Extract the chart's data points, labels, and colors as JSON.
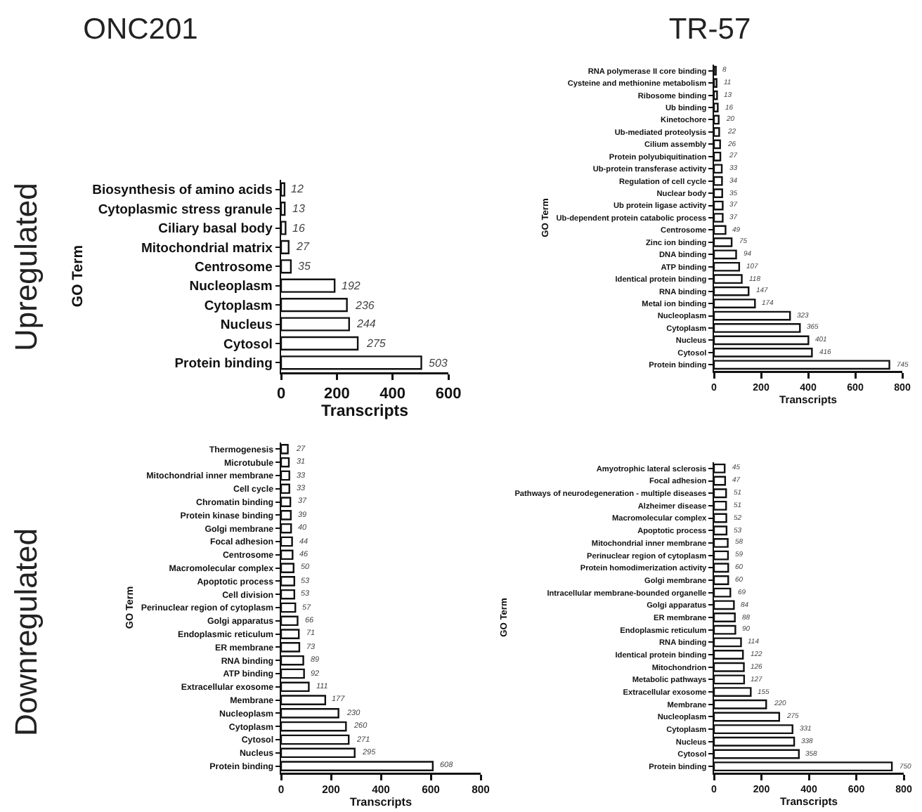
{
  "chart_data": [
    {
      "type": "bar",
      "orientation": "horizontal",
      "title": "ONC201",
      "annotations": [
        "Upregulated"
      ],
      "xlabel": "Transcripts",
      "ylabel": "GO Term",
      "categories": [
        "Biosynthesis of amino acids",
        "Cytoplasmic stress granule",
        "Ciliary basal body",
        "Mitochondrial matrix",
        "Centrosome",
        "Nucleoplasm",
        "Cytoplasm",
        "Nucleus",
        "Cytosol",
        "Protein binding"
      ],
      "values": [
        12,
        13,
        16,
        27,
        35,
        192,
        236,
        244,
        275,
        503
      ],
      "color": "#ffffff",
      "xlim": [
        0,
        600
      ],
      "xticks": [
        0,
        200,
        400,
        600
      ],
      "data_labels": true
    },
    {
      "type": "bar",
      "orientation": "horizontal",
      "title": "TR-57",
      "xlabel": "Transcripts",
      "ylabel": "GO Term",
      "categories": [
        "RNA polymerase II core binding",
        "Cysteine and methionine metabolism",
        "Ribosome binding",
        "Ub binding",
        "Kinetochore",
        "Ub-mediated proteolysis",
        "Cilium assembly",
        "Protein polyubiquitination",
        "Ub-protein transferase activity",
        "Regulation of cell cycle",
        "Nuclear body",
        "Ub protein ligase activity",
        "Ub-dependent protein catabolic process",
        "Centrosome",
        "Zinc ion binding",
        "DNA binding",
        "ATP binding",
        "Identical protein binding",
        "RNA binding",
        "Metal ion binding",
        "Nucleoplasm",
        "Cytoplasm",
        "Nucleus",
        "Cytosol",
        "Protein binding"
      ],
      "values": [
        8,
        11,
        13,
        16,
        20,
        22,
        26,
        27,
        33,
        34,
        35,
        37,
        37,
        49,
        75,
        94,
        107,
        118,
        147,
        174,
        323,
        365,
        401,
        416,
        745
      ],
      "color": "#ffffff",
      "xlim": [
        0,
        800
      ],
      "xticks": [
        0,
        200,
        400,
        600,
        800
      ],
      "data_labels": true
    },
    {
      "type": "bar",
      "orientation": "horizontal",
      "annotations": [
        "Downregulated"
      ],
      "xlabel": "Transcripts",
      "ylabel": "GO Term",
      "categories": [
        "Thermogenesis",
        "Microtubule",
        "Mitochondrial inner membrane",
        "Cell cycle",
        "Chromatin binding",
        "Protein kinase binding",
        "Golgi membrane",
        "Focal adhesion",
        "Centrosome",
        "Macromolecular complex",
        "Apoptotic process",
        "Cell division",
        "Perinuclear region of cytoplasm",
        "Golgi apparatus",
        "Endoplasmic reticulum",
        "ER membrane",
        "RNA binding",
        "ATP binding",
        "Extracellular exosome",
        "Membrane",
        "Nucleoplasm",
        "Cytoplasm",
        "Cytosol",
        "Nucleus",
        "Protein binding"
      ],
      "values": [
        27,
        31,
        33,
        33,
        37,
        39,
        40,
        44,
        46,
        50,
        53,
        53,
        57,
        66,
        71,
        73,
        89,
        92,
        111,
        177,
        230,
        260,
        271,
        295,
        608
      ],
      "color": "#ffffff",
      "xlim": [
        0,
        800
      ],
      "xticks": [
        0,
        200,
        400,
        600,
        800
      ],
      "data_labels": true
    },
    {
      "type": "bar",
      "orientation": "horizontal",
      "xlabel": "Transcripts",
      "ylabel": "GO Term",
      "categories": [
        "Amyotrophic lateral sclerosis",
        "Focal adhesion",
        "Pathways of neurodegeneration - multiple diseases",
        "Alzheimer disease",
        "Macromolecular complex",
        "Apoptotic process",
        "Mitochondrial inner membrane",
        "Perinuclear region of cytoplasm",
        "Protein homodimerization activity",
        "Golgi membrane",
        "Intracellular membrane-bounded organelle",
        "Golgi apparatus",
        "ER membrane",
        "Endoplasmic reticulum",
        "RNA binding",
        "Identical protein binding",
        "Mitochondrion",
        "Metabolic pathways",
        "Extracellular exosome",
        "Membrane",
        "Nucleoplasm",
        "Cytoplasm",
        "Nucleus",
        "Cytosol",
        "Protein binding"
      ],
      "values": [
        45,
        47,
        51,
        51,
        52,
        53,
        58,
        59,
        60,
        60,
        69,
        84,
        88,
        90,
        114,
        122,
        126,
        127,
        155,
        220,
        275,
        331,
        338,
        358,
        750
      ],
      "color": "#ffffff",
      "xlim": [
        0,
        800
      ],
      "xticks": [
        0,
        200,
        400,
        600,
        800
      ],
      "data_labels": true
    }
  ]
}
